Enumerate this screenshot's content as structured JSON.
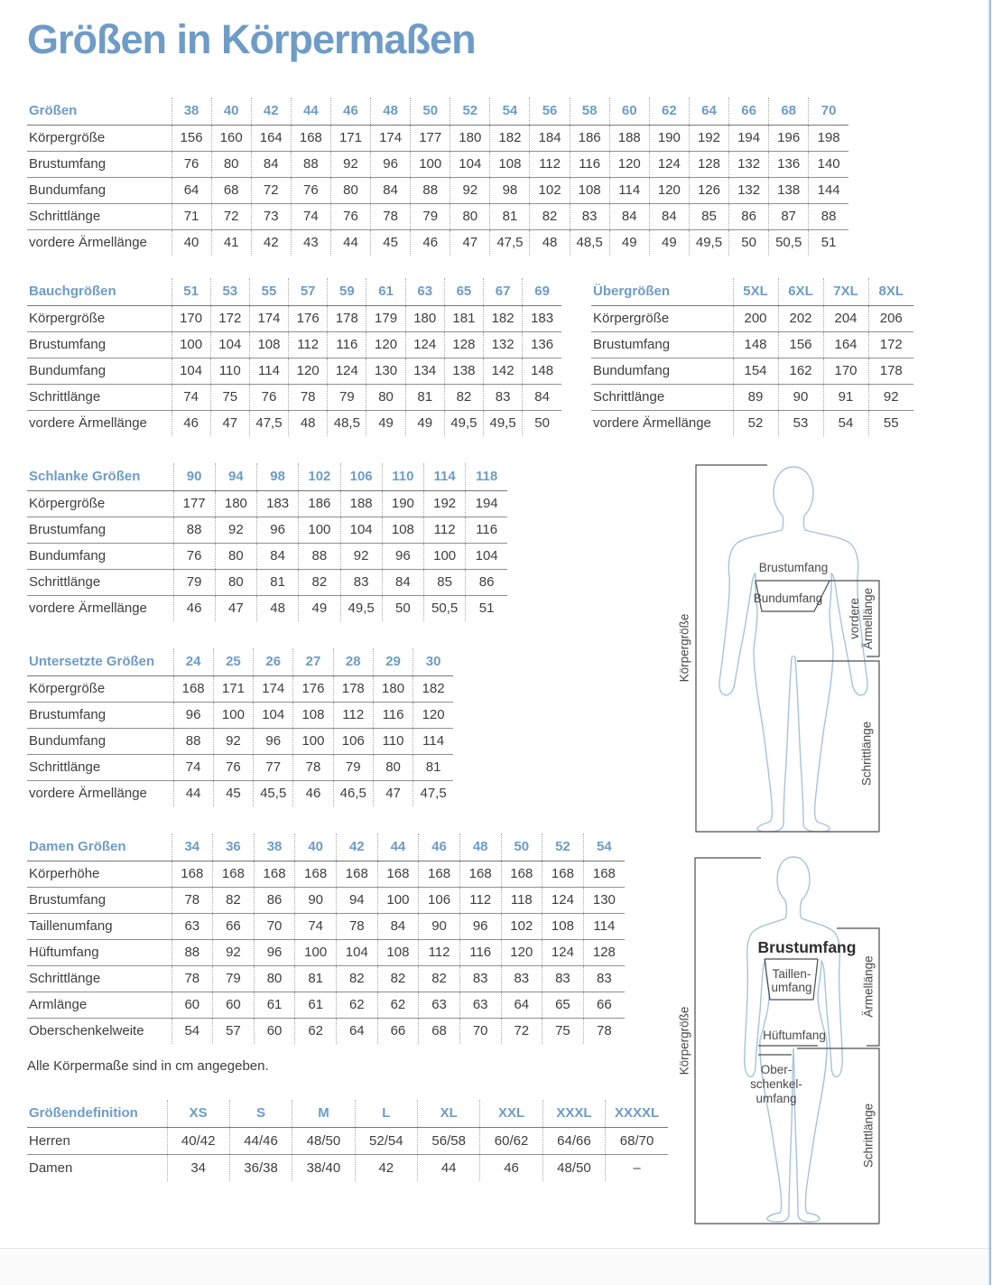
{
  "title": "Größen in Körpermaßen",
  "note": "Alle Körpermaße sind in cm angegeben.",
  "colors": {
    "blue": "#6e9cc7",
    "text": "#3e3e3e",
    "line": "#8f8f8f",
    "dotted": "#a8a8a8",
    "outline": "#a6c3de",
    "measure": "#4d4d4d"
  },
  "tables": {
    "groessen": {
      "header_label": "Größen",
      "sizes": [
        "38",
        "40",
        "42",
        "44",
        "46",
        "48",
        "50",
        "52",
        "54",
        "56",
        "58",
        "60",
        "62",
        "64",
        "66",
        "68",
        "70"
      ],
      "rows": [
        {
          "label": "Körpergröße",
          "values": [
            "156",
            "160",
            "164",
            "168",
            "171",
            "174",
            "177",
            "180",
            "182",
            "184",
            "186",
            "188",
            "190",
            "192",
            "194",
            "196",
            "198"
          ]
        },
        {
          "label": "Brustumfang",
          "values": [
            "76",
            "80",
            "84",
            "88",
            "92",
            "96",
            "100",
            "104",
            "108",
            "112",
            "116",
            "120",
            "124",
            "128",
            "132",
            "136",
            "140"
          ]
        },
        {
          "label": "Bundumfang",
          "values": [
            "64",
            "68",
            "72",
            "76",
            "80",
            "84",
            "88",
            "92",
            "98",
            "102",
            "108",
            "114",
            "120",
            "126",
            "132",
            "138",
            "144"
          ]
        },
        {
          "label": "Schrittlänge",
          "values": [
            "71",
            "72",
            "73",
            "74",
            "76",
            "78",
            "79",
            "80",
            "81",
            "82",
            "83",
            "84",
            "84",
            "85",
            "86",
            "87",
            "88"
          ]
        },
        {
          "label": "vordere Ärmellänge",
          "values": [
            "40",
            "41",
            "42",
            "43",
            "44",
            "45",
            "46",
            "47",
            "47,5",
            "48",
            "48,5",
            "49",
            "49",
            "49,5",
            "50",
            "50,5",
            "51"
          ]
        }
      ]
    },
    "bauchgroessen": {
      "header_label": "Bauchgrößen",
      "sizes": [
        "51",
        "53",
        "55",
        "57",
        "59",
        "61",
        "63",
        "65",
        "67",
        "69"
      ],
      "rows": [
        {
          "label": "Körpergröße",
          "values": [
            "170",
            "172",
            "174",
            "176",
            "178",
            "179",
            "180",
            "181",
            "182",
            "183"
          ]
        },
        {
          "label": "Brustumfang",
          "values": [
            "100",
            "104",
            "108",
            "112",
            "116",
            "120",
            "124",
            "128",
            "132",
            "136"
          ]
        },
        {
          "label": "Bundumfang",
          "values": [
            "104",
            "110",
            "114",
            "120",
            "124",
            "130",
            "134",
            "138",
            "142",
            "148"
          ]
        },
        {
          "label": "Schrittlänge",
          "values": [
            "74",
            "75",
            "76",
            "78",
            "79",
            "80",
            "81",
            "82",
            "83",
            "84"
          ]
        },
        {
          "label": "vordere Ärmellänge",
          "values": [
            "46",
            "47",
            "47,5",
            "48",
            "48,5",
            "49",
            "49",
            "49,5",
            "49,5",
            "50"
          ]
        }
      ]
    },
    "uebergroessen": {
      "header_label": "Übergrößen",
      "sizes": [
        "5XL",
        "6XL",
        "7XL",
        "8XL"
      ],
      "rows": [
        {
          "label": "Körpergröße",
          "values": [
            "200",
            "202",
            "204",
            "206"
          ]
        },
        {
          "label": "Brustumfang",
          "values": [
            "148",
            "156",
            "164",
            "172"
          ]
        },
        {
          "label": "Bundumfang",
          "values": [
            "154",
            "162",
            "170",
            "178"
          ]
        },
        {
          "label": "Schrittlänge",
          "values": [
            "89",
            "90",
            "91",
            "92"
          ]
        },
        {
          "label": "vordere Ärmellänge",
          "values": [
            "52",
            "53",
            "54",
            "55"
          ]
        }
      ]
    },
    "schlanke": {
      "header_label": "Schlanke Größen",
      "sizes": [
        "90",
        "94",
        "98",
        "102",
        "106",
        "110",
        "114",
        "118"
      ],
      "rows": [
        {
          "label": "Körpergröße",
          "values": [
            "177",
            "180",
            "183",
            "186",
            "188",
            "190",
            "192",
            "194"
          ]
        },
        {
          "label": "Brustumfang",
          "values": [
            "88",
            "92",
            "96",
            "100",
            "104",
            "108",
            "112",
            "116"
          ]
        },
        {
          "label": "Bundumfang",
          "values": [
            "76",
            "80",
            "84",
            "88",
            "92",
            "96",
            "100",
            "104"
          ]
        },
        {
          "label": "Schrittlänge",
          "values": [
            "79",
            "80",
            "81",
            "82",
            "83",
            "84",
            "85",
            "86"
          ]
        },
        {
          "label": "vordere Ärmellänge",
          "values": [
            "46",
            "47",
            "48",
            "49",
            "49,5",
            "50",
            "50,5",
            "51"
          ]
        }
      ]
    },
    "untersetzte": {
      "header_label": "Untersetzte Größen",
      "sizes": [
        "24",
        "25",
        "26",
        "27",
        "28",
        "29",
        "30"
      ],
      "rows": [
        {
          "label": "Körpergröße",
          "values": [
            "168",
            "171",
            "174",
            "176",
            "178",
            "180",
            "182"
          ]
        },
        {
          "label": "Brustumfang",
          "values": [
            "96",
            "100",
            "104",
            "108",
            "112",
            "116",
            "120"
          ]
        },
        {
          "label": "Bundumfang",
          "values": [
            "88",
            "92",
            "96",
            "100",
            "106",
            "110",
            "114"
          ]
        },
        {
          "label": "Schrittlänge",
          "values": [
            "74",
            "76",
            "77",
            "78",
            "79",
            "80",
            "81"
          ]
        },
        {
          "label": "vordere Ärmellänge",
          "values": [
            "44",
            "45",
            "45,5",
            "46",
            "46,5",
            "47",
            "47,5"
          ]
        }
      ]
    },
    "damen": {
      "header_label": "Damen Größen",
      "sizes": [
        "34",
        "36",
        "38",
        "40",
        "42",
        "44",
        "46",
        "48",
        "50",
        "52",
        "54"
      ],
      "rows": [
        {
          "label": "Körperhöhe",
          "values": [
            "168",
            "168",
            "168",
            "168",
            "168",
            "168",
            "168",
            "168",
            "168",
            "168",
            "168"
          ]
        },
        {
          "label": "Brustumfang",
          "values": [
            "78",
            "82",
            "86",
            "90",
            "94",
            "100",
            "106",
            "112",
            "118",
            "124",
            "130"
          ]
        },
        {
          "label": "Taillenumfang",
          "values": [
            "63",
            "66",
            "70",
            "74",
            "78",
            "84",
            "90",
            "96",
            "102",
            "108",
            "114"
          ]
        },
        {
          "label": "Hüftumfang",
          "values": [
            "88",
            "92",
            "96",
            "100",
            "104",
            "108",
            "112",
            "116",
            "120",
            "124",
            "128"
          ]
        },
        {
          "label": "Schrittlänge",
          "values": [
            "78",
            "79",
            "80",
            "81",
            "82",
            "82",
            "82",
            "83",
            "83",
            "83",
            "83"
          ]
        },
        {
          "label": "Armlänge",
          "values": [
            "60",
            "60",
            "61",
            "61",
            "62",
            "62",
            "63",
            "63",
            "64",
            "65",
            "66"
          ]
        },
        {
          "label": "Oberschenkelweite",
          "values": [
            "54",
            "57",
            "60",
            "62",
            "64",
            "66",
            "68",
            "70",
            "72",
            "75",
            "78"
          ]
        }
      ]
    },
    "definition": {
      "header_label": "Größendefinition",
      "sizes": [
        "XS",
        "S",
        "M",
        "L",
        "XL",
        "XXL",
        "XXXL",
        "XXXXL"
      ],
      "rows": [
        {
          "label": "Herren",
          "values": [
            "40/42",
            "44/46",
            "48/50",
            "52/54",
            "56/58",
            "60/62",
            "64/66",
            "68/70"
          ]
        },
        {
          "label": "Damen",
          "values": [
            "34",
            "36/38",
            "38/40",
            "42",
            "44",
            "46",
            "48/50",
            "–"
          ]
        }
      ]
    }
  },
  "diagrams": {
    "male": {
      "koerpergroesse": "Körpergröße",
      "brustumfang": "Brustumfang",
      "bundumfang": "Bundumfang",
      "vordere_line1": "vordere",
      "vordere_line2": "Ärmellänge",
      "schrittlaenge": "Schrittlänge"
    },
    "female": {
      "koerpergroesse": "Körpergröße",
      "brustumfang": "Brustumfang",
      "taille_line1": "Taillen-",
      "taille_line2": "umfang",
      "hueftumfang": "Hüftumfang",
      "ober_line1": "Ober-",
      "ober_line2": "schenkel-",
      "ober_line3": "umfang",
      "aermellaenge": "Ärmellänge",
      "schrittlaenge": "Schrittlänge"
    }
  }
}
